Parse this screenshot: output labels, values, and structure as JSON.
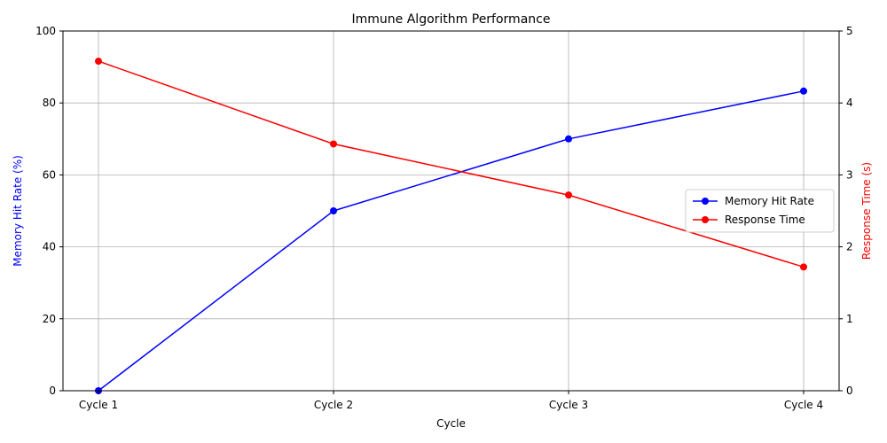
{
  "chart_data": {
    "type": "line",
    "title": "Immune Algorithm Performance",
    "xlabel": "Cycle",
    "categories": [
      "Cycle 1",
      "Cycle 2",
      "Cycle 3",
      "Cycle 4"
    ],
    "y_left": {
      "label": "Memory Hit Rate (%)",
      "color": "#0000ff",
      "ylim": [
        0,
        100
      ],
      "ticks": [
        0,
        20,
        40,
        60,
        80,
        100
      ]
    },
    "y_right": {
      "label": "Response Time (s)",
      "color": "#ff0000",
      "ylim": [
        0,
        5
      ],
      "ticks": [
        0,
        1,
        2,
        3,
        4,
        5
      ]
    },
    "series": [
      {
        "name": "Memory Hit Rate",
        "axis": "left",
        "color": "#0000ff",
        "values": [
          0,
          50,
          70,
          83.3
        ]
      },
      {
        "name": "Response Time",
        "axis": "right",
        "color": "#ff0000",
        "values": [
          4.58,
          3.43,
          2.72,
          1.72
        ]
      }
    ],
    "grid": true,
    "legend": "center-right"
  }
}
